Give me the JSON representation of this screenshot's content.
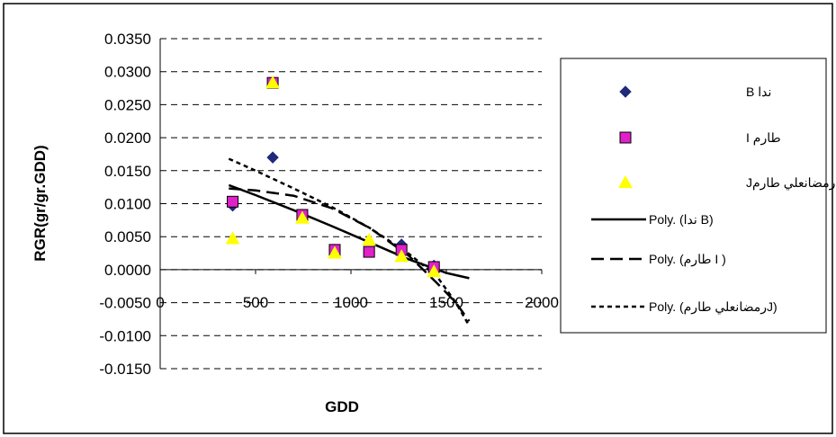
{
  "chart_data": {
    "type": "scatter",
    "title": "",
    "xlabel": "GDD",
    "ylabel": "RGR(gr/gr.GDD)",
    "xlim": [
      0,
      2000
    ],
    "ylim": [
      -0.015,
      0.035
    ],
    "x_ticks": [
      "0",
      "500",
      "1000",
      "1500",
      "2000"
    ],
    "y_ticks": [
      "0.0350",
      "0.0300",
      "0.0250",
      "0.0200",
      "0.0150",
      "0.0100",
      "0.0050",
      "0.0000",
      "-0.0050",
      "-0.0100",
      "-0.0150"
    ],
    "grid": "horizontal dashed",
    "legend_position": "right",
    "series": [
      {
        "name": "ندا B",
        "marker": "diamond",
        "color": "#1F2A7A",
        "points": [
          [
            380,
            0.0097
          ],
          [
            590,
            0.017
          ],
          [
            745,
            0.0083
          ],
          [
            915,
            0.003
          ],
          [
            1095,
            0.0027
          ],
          [
            1265,
            0.0038
          ],
          [
            1435,
            0.0006
          ]
        ]
      },
      {
        "name": "طارم I",
        "marker": "square",
        "color": "#E020C8",
        "points": [
          [
            380,
            0.0103
          ],
          [
            590,
            0.0283
          ],
          [
            745,
            0.0083
          ],
          [
            915,
            0.003
          ],
          [
            1095,
            0.0027
          ],
          [
            1265,
            0.003
          ],
          [
            1435,
            0.0004
          ]
        ]
      },
      {
        "name": "رمضانعلي طارمJ",
        "marker": "triangle",
        "color": "#FFFF00",
        "points": [
          [
            380,
            0.0047
          ],
          [
            590,
            0.0283
          ],
          [
            745,
            0.0078
          ],
          [
            915,
            0.0025
          ],
          [
            1095,
            0.0045
          ],
          [
            1265,
            0.002
          ],
          [
            1435,
            -0.0003
          ]
        ]
      }
    ],
    "trendlines": [
      {
        "name": "Poly. (ندا B)",
        "style": "solid",
        "points": [
          [
            360,
            0.0128
          ],
          [
            500,
            0.0113
          ],
          [
            700,
            0.009
          ],
          [
            900,
            0.0066
          ],
          [
            1100,
            0.0041
          ],
          [
            1300,
            0.0016
          ],
          [
            1500,
            -0.0005
          ],
          [
            1620,
            -0.0013
          ]
        ]
      },
      {
        "name": "Poly. (طارم I )",
        "style": "long-dash",
        "points": [
          [
            360,
            0.0123
          ],
          [
            500,
            0.012
          ],
          [
            700,
            0.0112
          ],
          [
            900,
            0.0093
          ],
          [
            1100,
            0.0063
          ],
          [
            1300,
            0.0022
          ],
          [
            1450,
            -0.002
          ],
          [
            1550,
            -0.005
          ],
          [
            1620,
            -0.0078
          ]
        ]
      },
      {
        "name": "Poly. (رمضانعلي طارمJ)",
        "style": "short-dash",
        "points": [
          [
            360,
            0.0168
          ],
          [
            500,
            0.015
          ],
          [
            700,
            0.0123
          ],
          [
            900,
            0.0095
          ],
          [
            1100,
            0.0063
          ],
          [
            1300,
            0.0025
          ],
          [
            1450,
            -0.001
          ],
          [
            1550,
            -0.005
          ],
          [
            1620,
            -0.0085
          ]
        ]
      }
    ]
  }
}
